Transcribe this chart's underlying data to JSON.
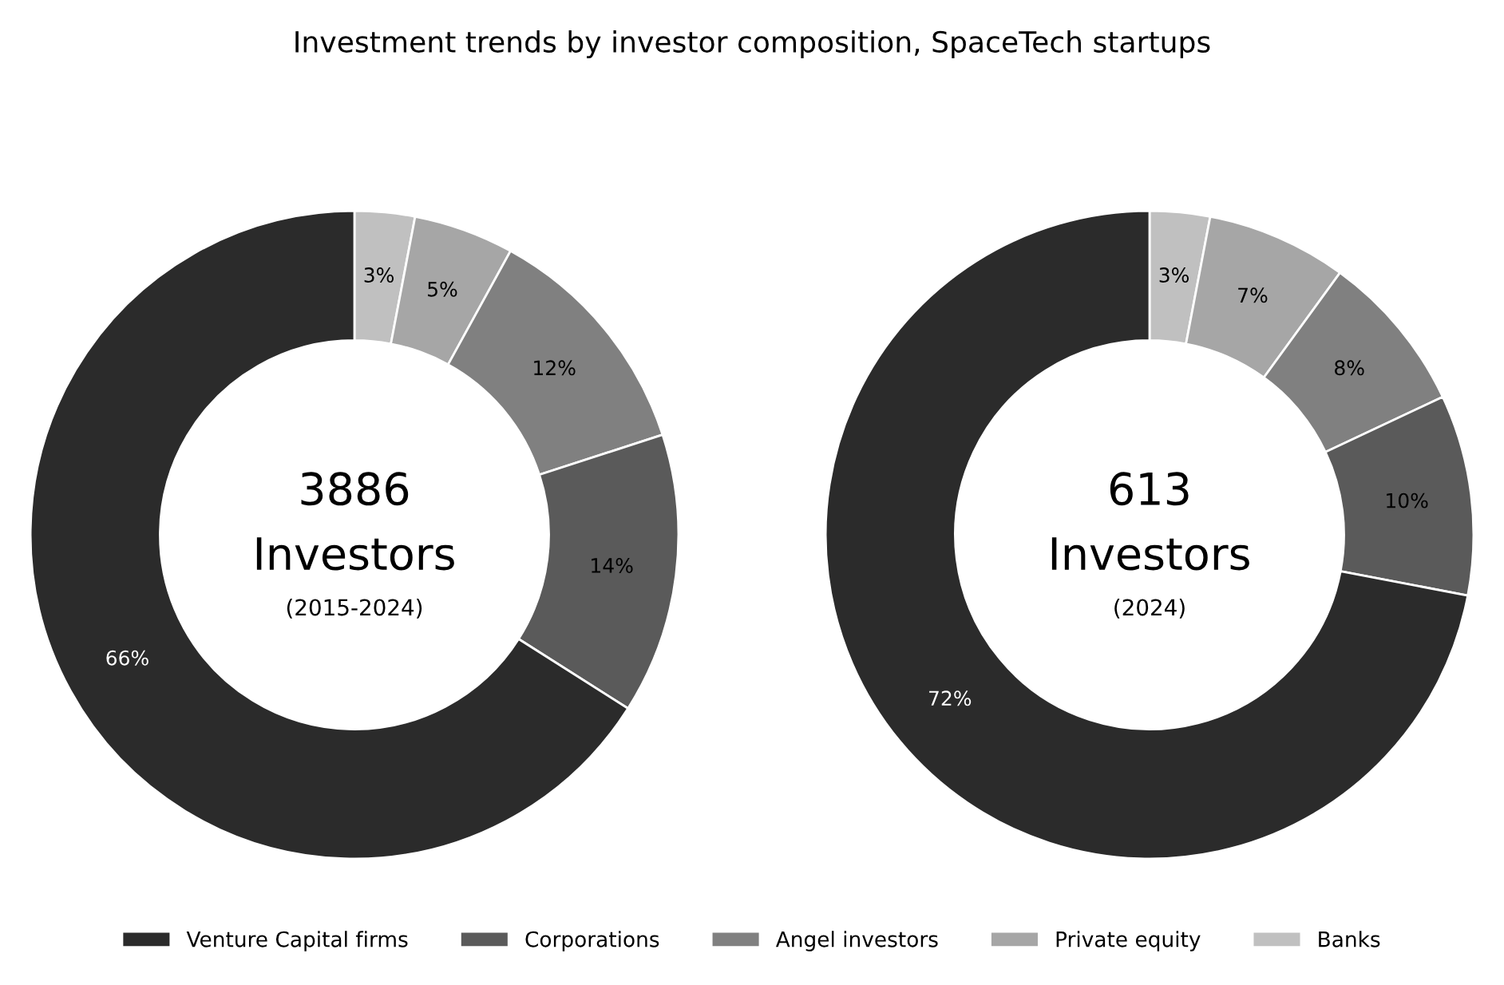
{
  "chart_data": [
    {
      "type": "donut",
      "title": "Investment trends by investor composition, SpaceTech startups",
      "categories": [
        "Banks",
        "Private equity",
        "Angel investors",
        "Corporations",
        "Venture Capital firms"
      ],
      "values": [
        3,
        5,
        12,
        14,
        66
      ],
      "colors": [
        "#c0c0c0",
        "#a6a6a6",
        "#808080",
        "#5a5a5a",
        "#2b2b2b"
      ],
      "value_labels": [
        "3%",
        "5%",
        "12%",
        "14%",
        "66%"
      ],
      "annotations": [
        "3886",
        "Investors",
        "(2015-2024)"
      ],
      "legend": "bottom"
    },
    {
      "type": "donut",
      "categories": [
        null,
        null,
        null,
        null,
        null
      ],
      "values": [
        3,
        7,
        8,
        10,
        72
      ],
      "colors": [
        "#c0c0c0",
        "#a6a6a6",
        "#808080",
        "#5a5a5a",
        "#2b2b2b"
      ],
      "value_labels": [
        "3%",
        "7%",
        "8%",
        "10%",
        "72%"
      ],
      "annotations": [
        "613",
        "Investors",
        "(2024)"
      ]
    }
  ]
}
